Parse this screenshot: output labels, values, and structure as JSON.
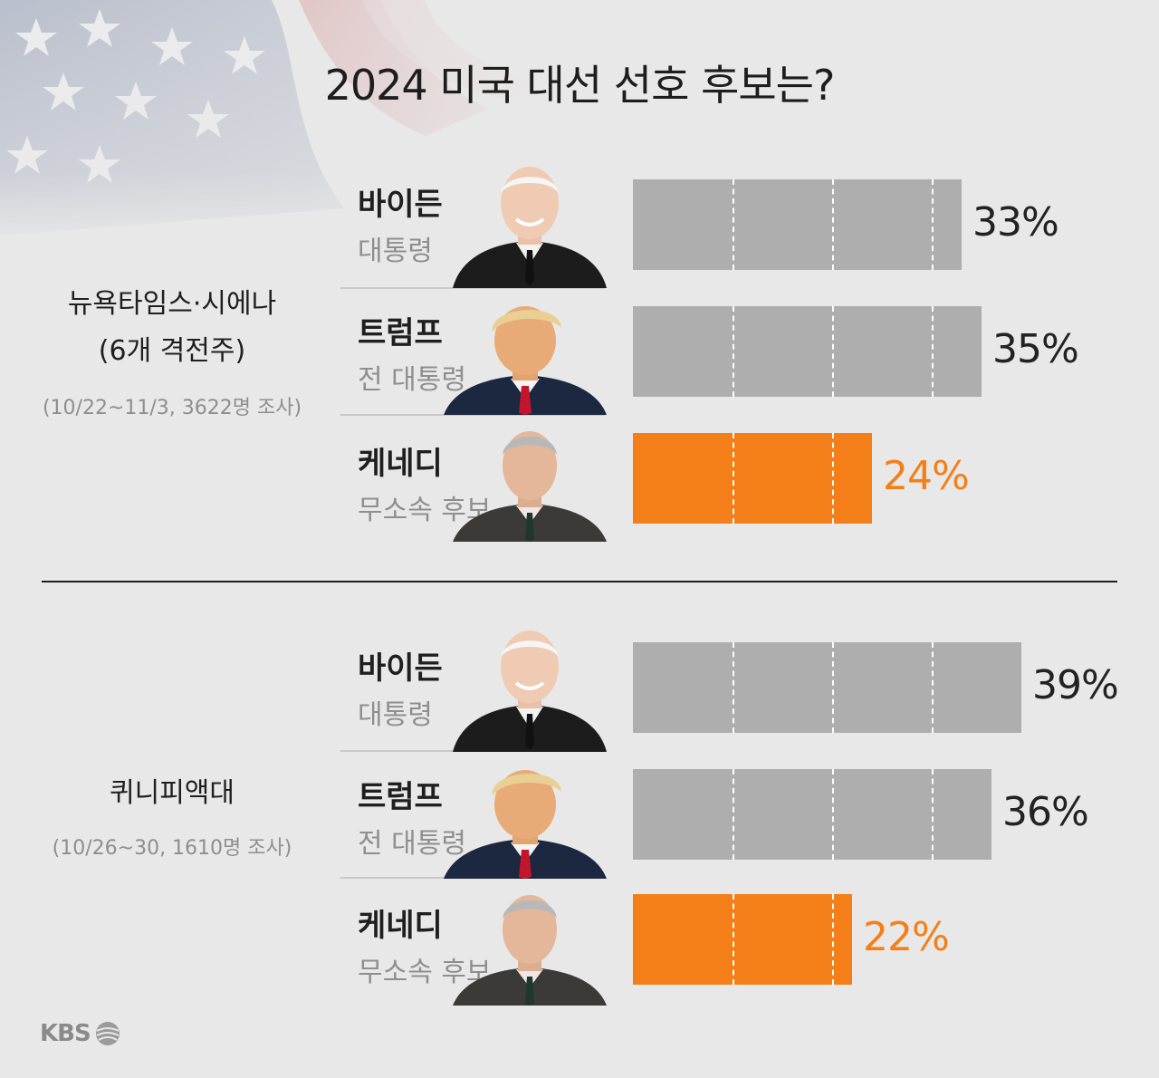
{
  "title": "2024 미국 대선 선호 후보는?",
  "logo": "KBS",
  "colors": {
    "highlight": "#f47f18",
    "bar": "#aeaeae"
  },
  "chart_data": [
    {
      "type": "bar",
      "survey": {
        "name": "뉴욕타임스·시에나",
        "detail": "(6개 격전주)",
        "period": "(10/22~11/3, 3622명 조사)"
      },
      "categories": [
        "바이든",
        "트럼프",
        "케네디"
      ],
      "roles": [
        "대통령",
        "전 대통령",
        "무소속 후보"
      ],
      "values": [
        33,
        35,
        24
      ],
      "labels": [
        "33%",
        "35%",
        "24%"
      ],
      "highlight": "케네디"
    },
    {
      "type": "bar",
      "survey": {
        "name": "퀴니피액대",
        "period": "(10/26~30, 1610명 조사)"
      },
      "categories": [
        "바이든",
        "트럼프",
        "케네디"
      ],
      "roles": [
        "대통령",
        "전 대통령",
        "무소속 후보"
      ],
      "values": [
        39,
        36,
        22
      ],
      "labels": [
        "39%",
        "36%",
        "22%"
      ],
      "highlight": "케네디"
    }
  ]
}
